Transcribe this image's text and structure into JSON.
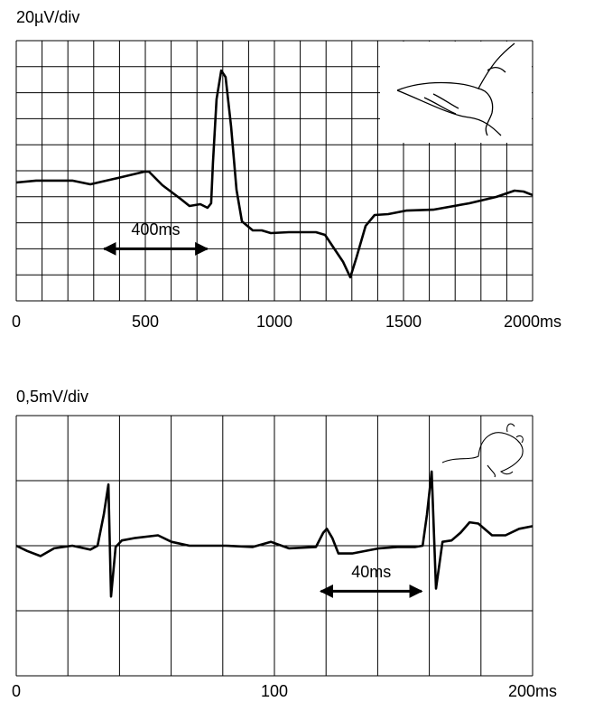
{
  "chart_data": [
    {
      "type": "line",
      "ylabel": "20µV/div",
      "color": "#000000",
      "x": [
        0,
        77,
        217,
        287,
        392,
        497,
        514,
        566,
        636,
        671,
        713,
        741,
        755,
        762,
        776,
        794,
        811,
        832,
        853,
        874,
        916,
        951,
        986,
        1056,
        1161,
        1196,
        1231,
        1266,
        1294,
        1318,
        1353,
        1388,
        1441,
        1510,
        1615,
        1755,
        1860,
        1930,
        1965,
        2000
      ],
      "values": [
        91,
        92.4,
        92.4,
        89.6,
        94.4,
        99.3,
        99.3,
        88.9,
        78.5,
        72.9,
        74.3,
        71.5,
        75,
        106,
        155,
        177,
        172,
        134,
        85.4,
        61.1,
        54.2,
        54.2,
        52.1,
        52.8,
        52.8,
        50.7,
        40.3,
        29.9,
        18.1,
        33.3,
        57.6,
        66,
        66.7,
        69.4,
        70.1,
        75,
        79.9,
        84.7,
        84,
        81.3
      ],
      "xlim": [
        0,
        2000
      ],
      "ylim": [
        0,
        200
      ],
      "xticks": [
        0,
        500,
        1000,
        1500,
        {
          "value": 2000,
          "label": "2000ms"
        }
      ],
      "grid": {
        "x": 100,
        "y": 20
      },
      "annotations": [
        {
          "text": "400ms",
          "x": [
            340,
            740
          ],
          "y": 40
        }
      ]
    },
    {
      "type": "line",
      "ylabel": "0,5mV/div",
      "color": "#000000",
      "x": [
        0,
        4.2,
        9.4,
        14.7,
        21.7,
        28.7,
        31.5,
        33.9,
        35.7,
        36.7,
        38.5,
        40.9,
        46.2,
        54.9,
        60.1,
        67.1,
        81.1,
        91.6,
        98.6,
        105.6,
        116.1,
        118.9,
        120.3,
        122.4,
        124.8,
        130.1,
        140.6,
        147.6,
        154.6,
        157.4,
        159.1,
        160.9,
        162.6,
        165.1,
        168.6,
        172.1,
        175.6,
        179,
        184.3,
        189.5,
        194.8,
        200
      ],
      "values": [
        1,
        0.96,
        0.92,
        0.98,
        1,
        0.97,
        1,
        1.24,
        1.47,
        0.61,
        0.99,
        1.04,
        1.06,
        1.08,
        1.03,
        1,
        1,
        0.99,
        1.03,
        0.98,
        0.99,
        1.1,
        1.13,
        1.06,
        0.94,
        0.94,
        0.98,
        0.99,
        0.99,
        1,
        1.24,
        1.57,
        0.67,
        1.03,
        1.04,
        1.1,
        1.18,
        1.17,
        1.08,
        1.08,
        1.13,
        1.15
      ],
      "xlim": [
        0,
        200
      ],
      "ylim": [
        0,
        2
      ],
      "xticks": [
        0,
        100,
        {
          "value": 200,
          "label": "200ms"
        }
      ],
      "grid": {
        "x": 20,
        "y": 0.5
      },
      "annotations": [
        {
          "text": "40ms",
          "x": [
            118,
            157
          ],
          "y": 0.65
        }
      ]
    }
  ]
}
